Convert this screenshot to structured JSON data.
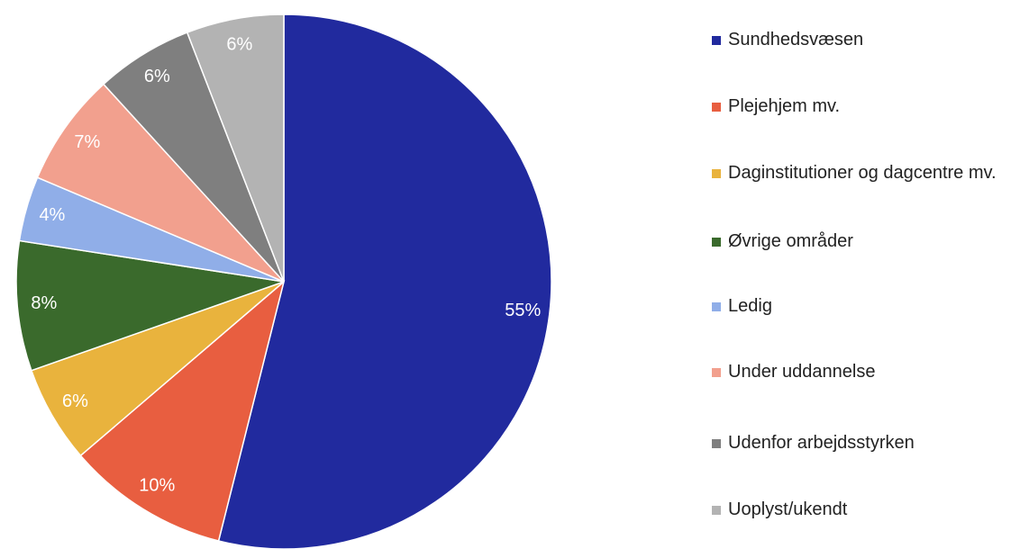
{
  "chart_data": {
    "type": "pie",
    "categories": [
      "Sundhedsvæsen",
      "Plejehjem mv.",
      "Daginstitutioner og dagcentre mv.",
      "Øvrige områder",
      "Ledig",
      "Under uddannelse",
      "Udenfor arbejdsstyrken",
      "Uoplyst/ukendt"
    ],
    "values": [
      55,
      10,
      6,
      8,
      4,
      7,
      6,
      6
    ],
    "value_labels": [
      "55%",
      "10%",
      "6%",
      "8%",
      "4%",
      "7%",
      "6%",
      "6%"
    ],
    "colors": [
      "#212a9e",
      "#e85e40",
      "#e9b33d",
      "#3a6a2c",
      "#90aee8",
      "#f2a08e",
      "#7f7f7f",
      "#b3b3b3"
    ],
    "legend": "right"
  }
}
